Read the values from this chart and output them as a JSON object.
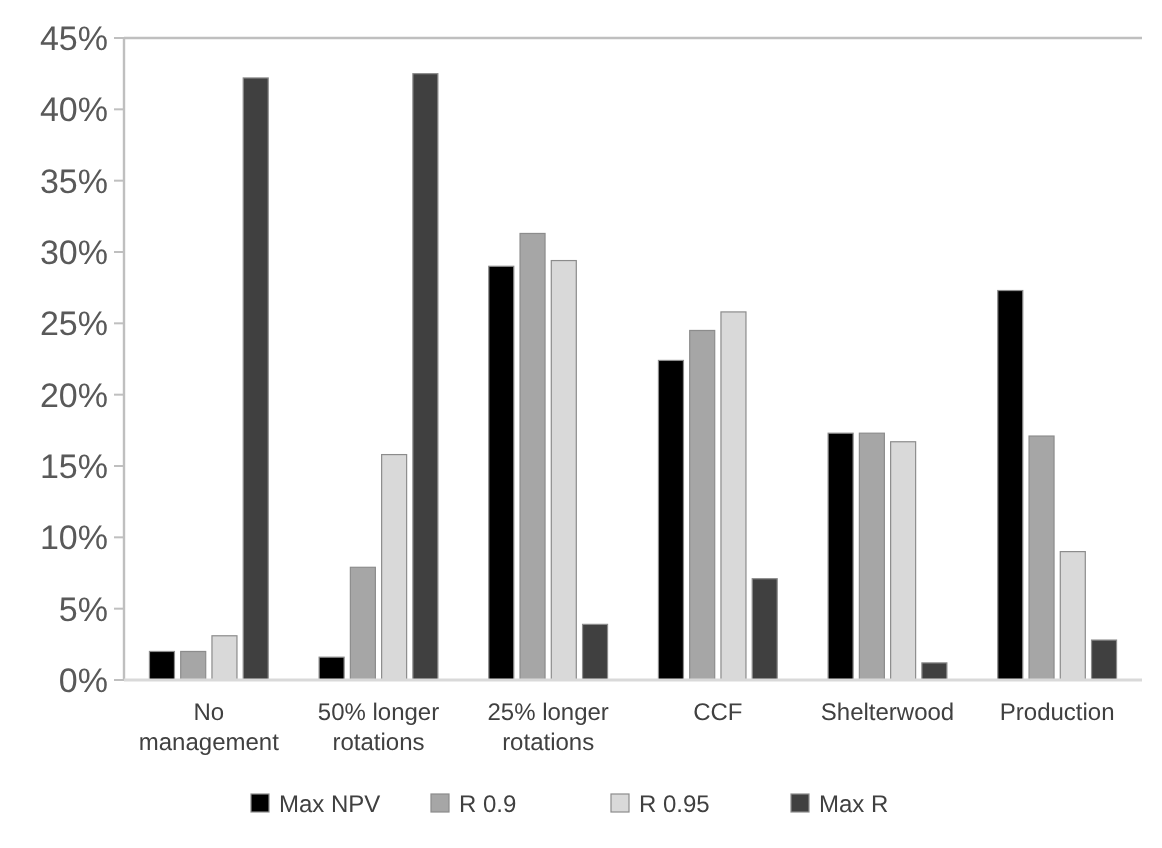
{
  "chart_data": {
    "type": "bar",
    "categories": [
      "No management",
      "50% longer rotations",
      "25% longer rotations",
      "CCF",
      "Shelterwood",
      "Production"
    ],
    "series": [
      {
        "name": "Max NPV",
        "color": "#000000",
        "values": [
          2.0,
          1.6,
          29.0,
          22.4,
          17.3,
          27.3
        ]
      },
      {
        "name": "R 0.9",
        "color": "#a6a6a6",
        "values": [
          2.0,
          7.9,
          31.3,
          24.5,
          17.3,
          17.1
        ]
      },
      {
        "name": "R 0.95",
        "color": "#d9d9d9",
        "values": [
          3.1,
          15.8,
          29.4,
          25.8,
          16.7,
          9.0
        ]
      },
      {
        "name": "Max R",
        "color": "#404040",
        "values": [
          42.2,
          42.5,
          3.9,
          7.1,
          1.2,
          2.8
        ]
      }
    ],
    "ylim": [
      0,
      45
    ],
    "yticks": [
      {
        "value": 0,
        "label": "0%"
      },
      {
        "value": 5,
        "label": "5%"
      },
      {
        "value": 10,
        "label": "10%"
      },
      {
        "value": 15,
        "label": "15%"
      },
      {
        "value": 20,
        "label": "20%"
      },
      {
        "value": 25,
        "label": "25%"
      },
      {
        "value": 30,
        "label": "30%"
      },
      {
        "value": 35,
        "label": "35%"
      },
      {
        "value": 40,
        "label": "40%"
      },
      {
        "value": 45,
        "label": "45%"
      }
    ],
    "grid": false,
    "legend": "bottom"
  }
}
